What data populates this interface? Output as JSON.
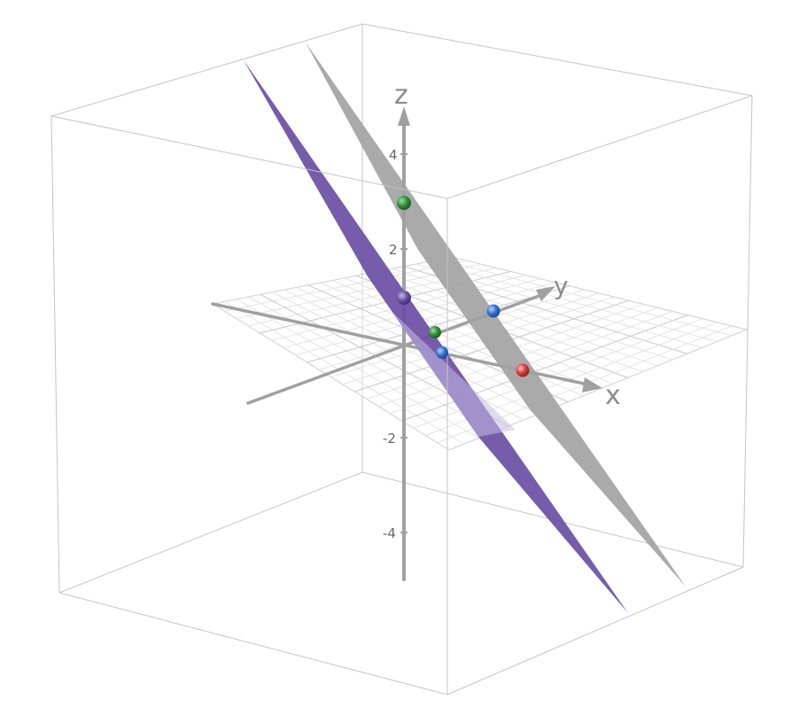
{
  "graph": {
    "axis_labels": {
      "x": "x",
      "y": "y",
      "z": "z"
    },
    "z_ticks": [
      "4",
      "2",
      "-2",
      "-4"
    ]
  },
  "planes": [
    {
      "name": "plane-purple",
      "color": "#6a4ea3"
    },
    {
      "name": "plane-gray",
      "color": "#a3a3a3"
    }
  ],
  "points": [
    {
      "name": "green-point-top",
      "color": "#2e8b3a"
    },
    {
      "name": "purple-point",
      "color": "#6a4ea3"
    },
    {
      "name": "blue-point-right",
      "color": "#2f6fd0"
    },
    {
      "name": "green-point-center",
      "color": "#2e8b3a"
    },
    {
      "name": "blue-point-center",
      "color": "#2f6fd0"
    },
    {
      "name": "red-point",
      "color": "#d43a3a"
    }
  ]
}
